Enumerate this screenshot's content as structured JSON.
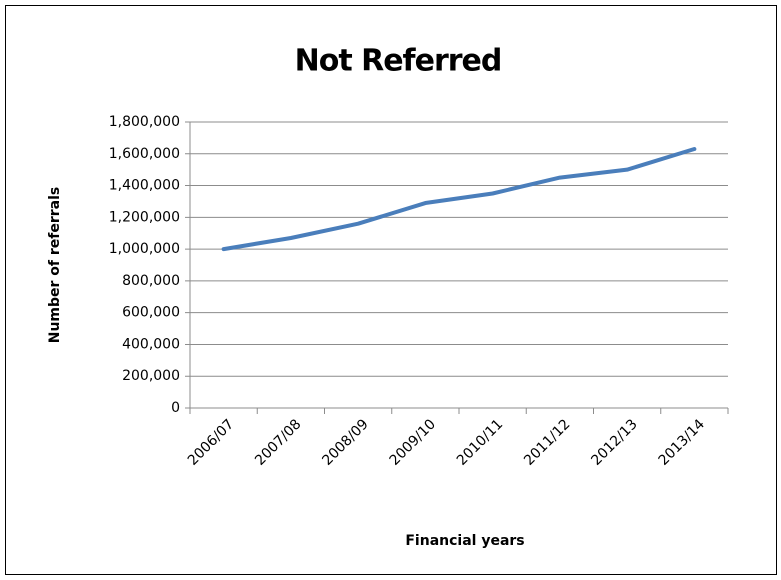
{
  "chart_data": {
    "type": "line",
    "title": "Not Referred",
    "x_label": "Financial years",
    "y_label": "Number of referrals",
    "categories": [
      "2006/07",
      "2007/08",
      "2008/09",
      "2009/10",
      "2010/11",
      "2011/12",
      "2012/13",
      "2013/14"
    ],
    "values": [
      1000000,
      1070000,
      1160000,
      1290000,
      1350000,
      1450000,
      1500000,
      1630000
    ],
    "color": "#4a7ebb",
    "ylim": [
      0,
      1800000
    ],
    "yticks": [
      0,
      {
        "value": 200000,
        "label": "200,000"
      },
      {
        "value": 400000,
        "label": "400,000"
      },
      {
        "value": 600000,
        "label": "600,000"
      },
      {
        "value": 800000,
        "label": "800,000"
      },
      {
        "value": 1000000,
        "label": "1,000,000"
      },
      {
        "value": 1200000,
        "label": "1,200,000"
      },
      {
        "value": 1400000,
        "label": "1,400,000"
      },
      {
        "value": 1600000,
        "label": "1,600,000"
      },
      {
        "value": 1800000,
        "label": "1,800,000"
      }
    ],
    "grid": true
  }
}
